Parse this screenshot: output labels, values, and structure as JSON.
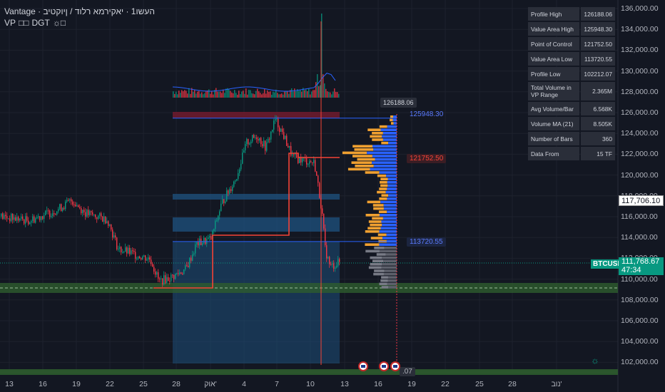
{
  "header": {
    "line1": "Vantage · העשו1 · יאקירמא רלוד / ןיוקטיב",
    "line2_items": [
      "VP",
      "□□",
      "DGT",
      "☼□"
    ]
  },
  "stats_table": [
    {
      "label": "Profile High",
      "value": "126188.06"
    },
    {
      "label": "Value Area High",
      "value": "125948.30"
    },
    {
      "label": "Point of Control",
      "value": "121752.50"
    },
    {
      "label": "Value Area Low",
      "value": "113720.55"
    },
    {
      "label": "Profile Low",
      "value": "102212.07"
    },
    {
      "label": "Total Volume in VP Range",
      "value": "2.365M"
    },
    {
      "label": "Avg Volume/Bar",
      "value": "6.568K"
    },
    {
      "label": "Volume MA (21)",
      "value": "8.505K"
    },
    {
      "label": "Number of Bars",
      "value": "360"
    },
    {
      "label": "Data From",
      "value": "15 TF"
    }
  ],
  "y_axis_labels": [
    "136,000.00",
    "134,000.00",
    "132,000.00",
    "130,000.00",
    "128,000.00",
    "126,000.00",
    "124,000.00",
    "122,000.00",
    "120,000.00",
    "118,000.00",
    "116,000.00",
    "114,000.00",
    "112,000.00",
    "110,000.00",
    "108,000.00",
    "106,000.00",
    "104,000.00",
    "102,000.00"
  ],
  "x_axis_labels": [
    "13",
    "16",
    "19",
    "22",
    "25",
    "28",
    "אוק'",
    "4",
    "7",
    "10",
    "13",
    "16",
    "19",
    "22",
    "25",
    "28",
    "נוב'"
  ],
  "price_marker": "117,706.10",
  "symbol": "BTCUSD",
  "current_price": "111,768.67",
  "countdown": "47:34",
  "profile_high_tag": "126188.06",
  "vah_tag": "125948.30",
  "poc_tag": "121752.50",
  "val_tag": "113720.55",
  "profile_low_tag": ".07",
  "colors": {
    "bg": "#131722",
    "up": "#089981",
    "down": "#f23645",
    "poc": "#f44336",
    "vp_blue": "#2962ff",
    "vp_orange": "#f0a030",
    "vp_gray": "#787b86"
  },
  "chart_data": {
    "type": "candlestick",
    "ylim": [
      101500,
      136800
    ],
    "value_area_high": 125948.3,
    "point_of_control": 121752.5,
    "value_area_low": 113720.55,
    "profile_high": 126188.06,
    "profile_low": 102212.07,
    "last_price": 111768.67
  }
}
